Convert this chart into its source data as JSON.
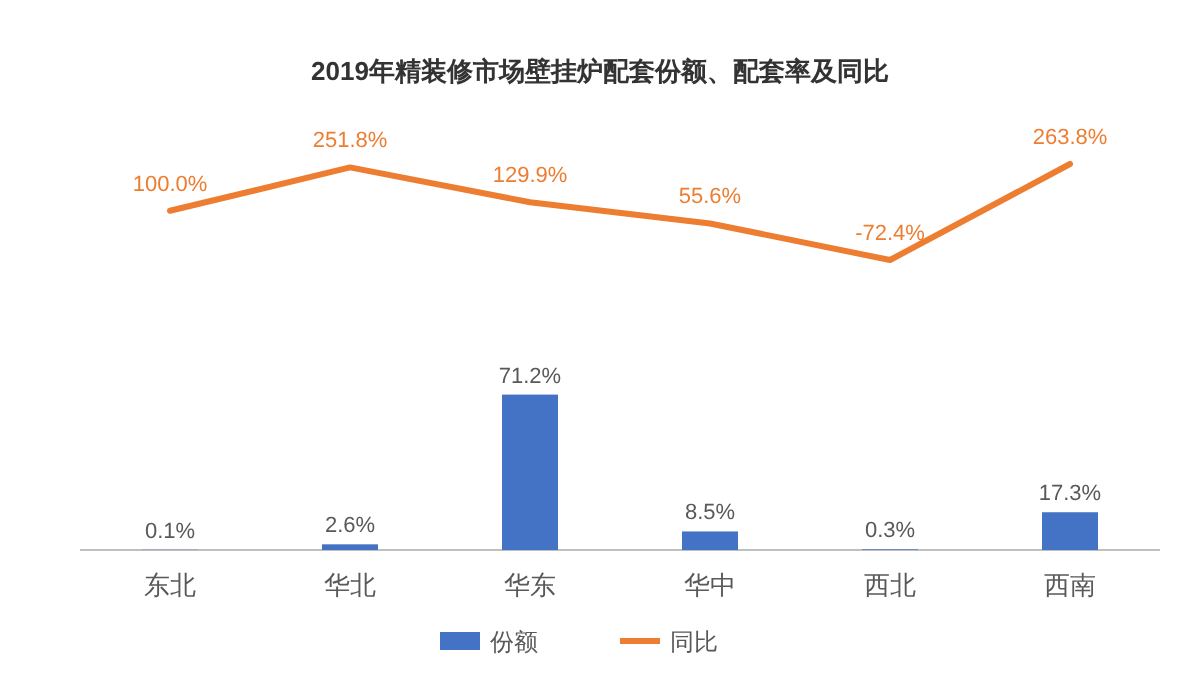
{
  "chart_data": [
    {
      "type": "line",
      "title": "2019年精装修市场壁挂炉配套份额、配套率及同比",
      "categories": [
        null,
        null,
        null,
        null,
        null,
        null
      ],
      "tick_labels": false,
      "legend": "bottom",
      "series": [
        {
          "name": "同比",
          "color": "#ed7d31",
          "values": [
            100.0,
            251.8,
            129.9,
            55.6,
            -72.4,
            263.8
          ],
          "value_labels": [
            "100.0%",
            "251.8%",
            "129.9%",
            "55.6%",
            "-72.4%",
            "263.8%"
          ]
        }
      ]
    },
    {
      "type": "bar",
      "categories": [
        "东北",
        "华北",
        "华东",
        "华中",
        "西北",
        "西南"
      ],
      "legend": "bottom",
      "series": [
        {
          "name": "份额",
          "color": "#4472c4",
          "values": [
            0.1,
            2.6,
            71.2,
            8.5,
            0.3,
            17.3
          ],
          "value_labels": [
            "0.1%",
            "2.6%",
            "71.2%",
            "8.5%",
            "0.3%",
            "17.3%"
          ]
        }
      ]
    }
  ]
}
